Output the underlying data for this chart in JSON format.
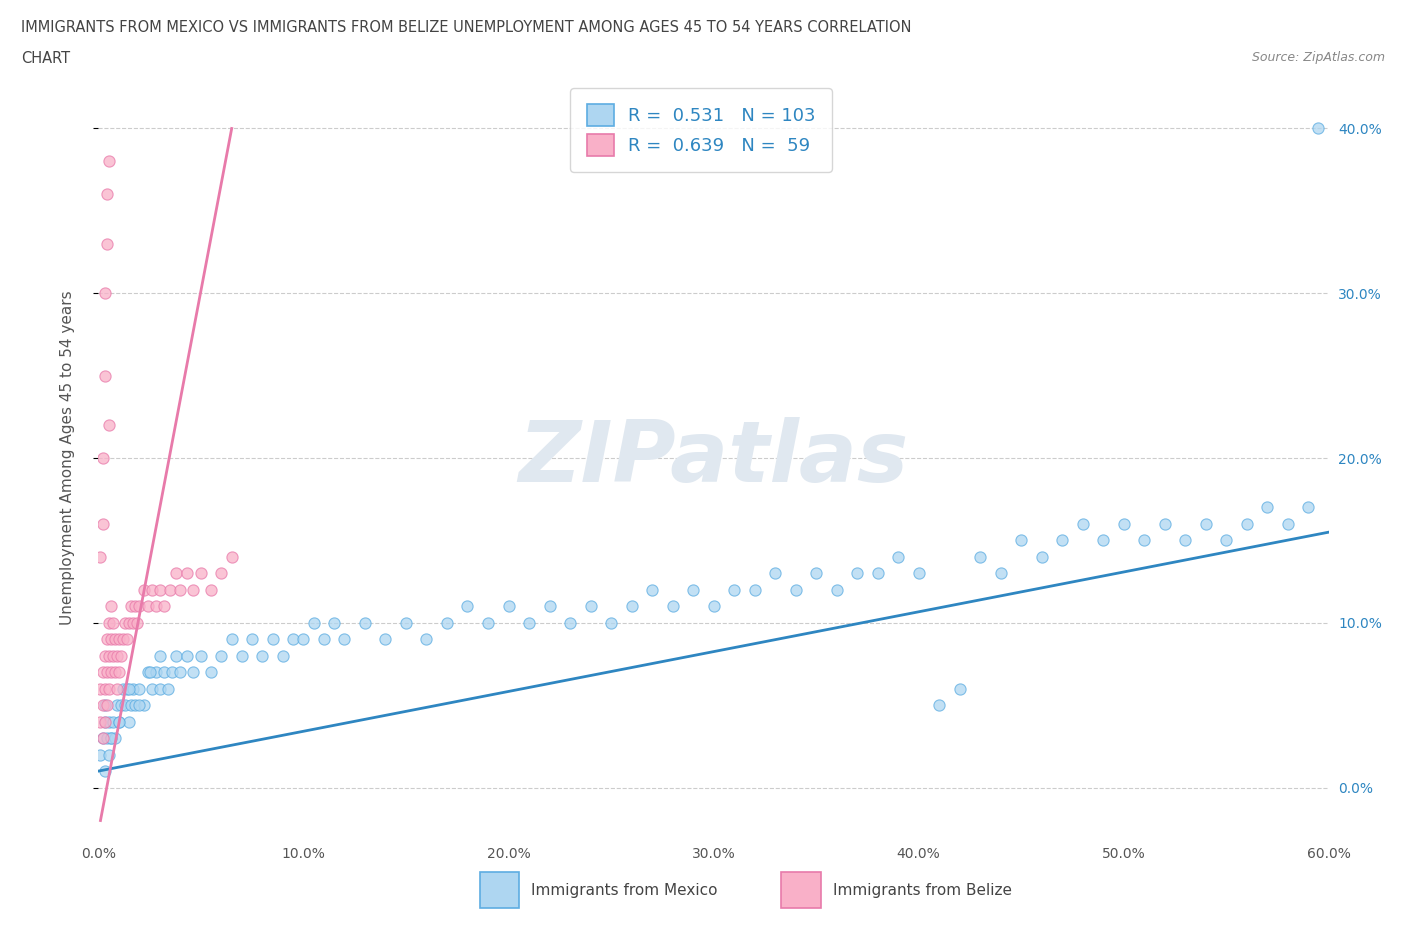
{
  "title_line1": "IMMIGRANTS FROM MEXICO VS IMMIGRANTS FROM BELIZE UNEMPLOYMENT AMONG AGES 45 TO 54 YEARS CORRELATION",
  "title_line2": "CHART",
  "source_text": "Source: ZipAtlas.com",
  "ylabel": "Unemployment Among Ages 45 to 54 years",
  "xlabel_mexico": "Immigrants from Mexico",
  "xlabel_belize": "Immigrants from Belize",
  "r_mexico": 0.531,
  "n_mexico": 103,
  "r_belize": 0.639,
  "n_belize": 59,
  "mexico_face_color": "#aed6f1",
  "mexico_edge_color": "#5dade2",
  "belize_face_color": "#f9b0c8",
  "belize_edge_color": "#e87aaa",
  "mexico_line_color": "#2e86c1",
  "belize_line_color": "#e87aaa",
  "xmin": 0.0,
  "xmax": 0.6,
  "ymin": -0.03,
  "ymax": 0.43,
  "watermark": "ZIPatlas",
  "right_ytick_vals": [
    0.0,
    0.1,
    0.2,
    0.3,
    0.4
  ],
  "right_ytick_labels": [
    "0.0%",
    "10.0%",
    "20.0%",
    "30.0%",
    "40.0%"
  ],
  "xtick_vals": [
    0.0,
    0.1,
    0.2,
    0.3,
    0.4,
    0.5,
    0.6
  ],
  "xtick_labels": [
    "0.0%",
    "10.0%",
    "20.0%",
    "30.0%",
    "40.0%",
    "50.0%",
    "60.0%"
  ],
  "mexico_scatter_x": [
    0.001,
    0.002,
    0.003,
    0.003,
    0.004,
    0.005,
    0.005,
    0.006,
    0.007,
    0.008,
    0.009,
    0.01,
    0.011,
    0.012,
    0.013,
    0.014,
    0.015,
    0.016,
    0.017,
    0.018,
    0.02,
    0.022,
    0.024,
    0.026,
    0.028,
    0.03,
    0.032,
    0.034,
    0.036,
    0.038,
    0.04,
    0.043,
    0.046,
    0.05,
    0.055,
    0.06,
    0.065,
    0.07,
    0.075,
    0.08,
    0.085,
    0.09,
    0.095,
    0.1,
    0.105,
    0.11,
    0.115,
    0.12,
    0.13,
    0.14,
    0.15,
    0.16,
    0.17,
    0.18,
    0.19,
    0.2,
    0.21,
    0.22,
    0.23,
    0.24,
    0.25,
    0.26,
    0.27,
    0.28,
    0.29,
    0.3,
    0.31,
    0.32,
    0.33,
    0.34,
    0.35,
    0.36,
    0.37,
    0.38,
    0.39,
    0.4,
    0.41,
    0.42,
    0.43,
    0.44,
    0.45,
    0.46,
    0.47,
    0.48,
    0.49,
    0.5,
    0.51,
    0.52,
    0.53,
    0.54,
    0.55,
    0.56,
    0.57,
    0.58,
    0.59,
    0.595,
    0.003,
    0.006,
    0.01,
    0.015,
    0.02,
    0.025,
    0.03
  ],
  "mexico_scatter_y": [
    0.02,
    0.03,
    0.01,
    0.04,
    0.03,
    0.04,
    0.02,
    0.03,
    0.04,
    0.03,
    0.05,
    0.04,
    0.05,
    0.06,
    0.05,
    0.06,
    0.04,
    0.05,
    0.06,
    0.05,
    0.06,
    0.05,
    0.07,
    0.06,
    0.07,
    0.06,
    0.07,
    0.06,
    0.07,
    0.08,
    0.07,
    0.08,
    0.07,
    0.08,
    0.07,
    0.08,
    0.09,
    0.08,
    0.09,
    0.08,
    0.09,
    0.08,
    0.09,
    0.09,
    0.1,
    0.09,
    0.1,
    0.09,
    0.1,
    0.09,
    0.1,
    0.09,
    0.1,
    0.11,
    0.1,
    0.11,
    0.1,
    0.11,
    0.1,
    0.11,
    0.1,
    0.11,
    0.12,
    0.11,
    0.12,
    0.11,
    0.12,
    0.12,
    0.13,
    0.12,
    0.13,
    0.12,
    0.13,
    0.13,
    0.14,
    0.13,
    0.05,
    0.06,
    0.14,
    0.13,
    0.15,
    0.14,
    0.15,
    0.16,
    0.15,
    0.16,
    0.15,
    0.16,
    0.15,
    0.16,
    0.15,
    0.16,
    0.17,
    0.16,
    0.17,
    0.4,
    0.05,
    0.03,
    0.04,
    0.06,
    0.05,
    0.07,
    0.08
  ],
  "belize_scatter_x": [
    0.001,
    0.001,
    0.002,
    0.002,
    0.002,
    0.003,
    0.003,
    0.003,
    0.004,
    0.004,
    0.004,
    0.005,
    0.005,
    0.005,
    0.006,
    0.006,
    0.006,
    0.007,
    0.007,
    0.008,
    0.008,
    0.009,
    0.009,
    0.01,
    0.01,
    0.011,
    0.012,
    0.013,
    0.014,
    0.015,
    0.016,
    0.017,
    0.018,
    0.019,
    0.02,
    0.022,
    0.024,
    0.026,
    0.028,
    0.03,
    0.032,
    0.035,
    0.038,
    0.04,
    0.043,
    0.046,
    0.05,
    0.055,
    0.06,
    0.065,
    0.001,
    0.002,
    0.002,
    0.003,
    0.003,
    0.004,
    0.004,
    0.005,
    0.005
  ],
  "belize_scatter_y": [
    0.04,
    0.06,
    0.03,
    0.05,
    0.07,
    0.04,
    0.06,
    0.08,
    0.05,
    0.07,
    0.09,
    0.06,
    0.08,
    0.1,
    0.07,
    0.09,
    0.11,
    0.08,
    0.1,
    0.07,
    0.09,
    0.06,
    0.08,
    0.07,
    0.09,
    0.08,
    0.09,
    0.1,
    0.09,
    0.1,
    0.11,
    0.1,
    0.11,
    0.1,
    0.11,
    0.12,
    0.11,
    0.12,
    0.11,
    0.12,
    0.11,
    0.12,
    0.13,
    0.12,
    0.13,
    0.12,
    0.13,
    0.12,
    0.13,
    0.14,
    0.14,
    0.16,
    0.2,
    0.25,
    0.3,
    0.33,
    0.36,
    0.38,
    0.22
  ],
  "mexico_trend_x": [
    0.0,
    0.6
  ],
  "mexico_trend_y": [
    0.01,
    0.155
  ],
  "belize_trend_x": [
    0.001,
    0.065
  ],
  "belize_trend_y": [
    -0.02,
    0.4
  ]
}
